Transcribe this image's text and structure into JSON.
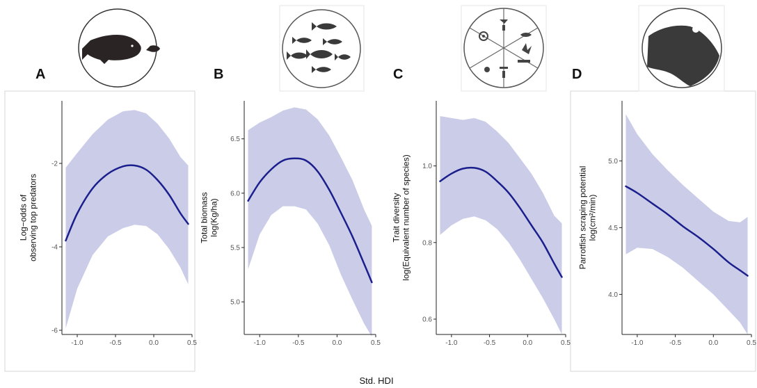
{
  "figure": {
    "shared_xlabel": "Std. HDI"
  },
  "colors": {
    "band": "#cbcce8",
    "line": "#1a1f8c",
    "axis": "#222222",
    "icon_dark": "#2b2b2b"
  },
  "chart_data": [
    {
      "type": "line",
      "panel": "A",
      "icon": "grouper-and-small-fish-icon",
      "xlabel": "",
      "ylabel": [
        "Log−odds of",
        "observing top predators"
      ],
      "xlim": [
        -1.2,
        0.5
      ],
      "ylim": [
        -6.1,
        -0.5
      ],
      "xticks": [
        "-1.0",
        "-0.5",
        "0.0",
        "0.5"
      ],
      "xtick_values": [
        -1.0,
        -0.5,
        0.0,
        0.5
      ],
      "yticks": [
        "-2",
        "-4",
        "-6"
      ],
      "ytick_values": [
        -2,
        -4,
        -6
      ],
      "grid": false,
      "series": [
        {
          "x": [
            -1.15,
            -1.0,
            -0.8,
            -0.6,
            -0.4,
            -0.25,
            -0.1,
            0.05,
            0.2,
            0.35,
            0.45
          ],
          "y": [
            -3.85,
            -3.2,
            -2.6,
            -2.25,
            -2.07,
            -2.05,
            -2.15,
            -2.4,
            -2.75,
            -3.2,
            -3.45
          ],
          "lower": [
            -5.95,
            -5.0,
            -4.2,
            -3.75,
            -3.55,
            -3.47,
            -3.5,
            -3.7,
            -4.05,
            -4.5,
            -4.9
          ],
          "upper": [
            -2.1,
            -1.75,
            -1.3,
            -0.95,
            -0.75,
            -0.72,
            -0.8,
            -1.05,
            -1.4,
            -1.85,
            -2.05
          ]
        }
      ]
    },
    {
      "type": "line",
      "panel": "B",
      "icon": "school-of-fish-icon",
      "xlabel": "",
      "ylabel": [
        "Total biomass",
        "log(Kg/ha)"
      ],
      "xlim": [
        -1.2,
        0.5
      ],
      "ylim": [
        4.7,
        6.85
      ],
      "xticks": [
        "-1.0",
        "-0.5",
        "0.0",
        "0.5"
      ],
      "xtick_values": [
        -1.0,
        -0.5,
        0.0,
        0.5
      ],
      "yticks": [
        "6.5",
        "6.0",
        "5.5",
        "5.0"
      ],
      "ytick_values": [
        6.5,
        6.0,
        5.5,
        5.0
      ],
      "grid": false,
      "series": [
        {
          "x": [
            -1.15,
            -1.0,
            -0.85,
            -0.7,
            -0.55,
            -0.4,
            -0.25,
            -0.1,
            0.05,
            0.2,
            0.35,
            0.45
          ],
          "y": [
            5.93,
            6.1,
            6.22,
            6.3,
            6.32,
            6.3,
            6.2,
            6.03,
            5.82,
            5.6,
            5.35,
            5.18
          ],
          "lower": [
            5.3,
            5.62,
            5.8,
            5.88,
            5.88,
            5.85,
            5.72,
            5.52,
            5.25,
            5.02,
            4.8,
            4.68
          ],
          "upper": [
            6.58,
            6.65,
            6.7,
            6.76,
            6.79,
            6.77,
            6.68,
            6.53,
            6.33,
            6.12,
            5.85,
            5.7
          ]
        }
      ]
    },
    {
      "type": "line",
      "panel": "C",
      "icon": "functional-traits-wheel-icon",
      "xlabel": "",
      "ylabel": [
        "Trait diversity",
        "log(Equivalent number of species)"
      ],
      "xlim": [
        -1.2,
        0.5
      ],
      "ylim": [
        0.56,
        1.17
      ],
      "xticks": [
        "-1.0",
        "-0.5",
        "0.0",
        "0.5"
      ],
      "xtick_values": [
        -1.0,
        -0.5,
        0.0,
        0.5
      ],
      "yticks": [
        "1.0",
        "0.8",
        "0.6"
      ],
      "ytick_values": [
        1.0,
        0.8,
        0.6
      ],
      "grid": false,
      "series": [
        {
          "x": [
            -1.15,
            -1.0,
            -0.85,
            -0.7,
            -0.55,
            -0.4,
            -0.25,
            -0.1,
            0.05,
            0.2,
            0.35,
            0.45
          ],
          "y": [
            0.96,
            0.98,
            0.993,
            0.995,
            0.985,
            0.96,
            0.93,
            0.89,
            0.845,
            0.8,
            0.745,
            0.71
          ],
          "lower": [
            0.82,
            0.845,
            0.862,
            0.868,
            0.858,
            0.835,
            0.8,
            0.755,
            0.705,
            0.655,
            0.6,
            0.56
          ],
          "upper": [
            1.13,
            1.125,
            1.12,
            1.125,
            1.115,
            1.09,
            1.06,
            1.02,
            0.98,
            0.93,
            0.87,
            0.85
          ]
        }
      ]
    },
    {
      "type": "line",
      "panel": "D",
      "icon": "parrotfish-head-icon",
      "xlabel": "",
      "ylabel": [
        "Parrotfish scraping potential",
        "log(cm²/min)"
      ],
      "xlim": [
        -1.2,
        0.5
      ],
      "ylim": [
        3.7,
        5.45
      ],
      "xticks": [
        "-1.0",
        "-0.5",
        "0.0",
        "0.5"
      ],
      "xtick_values": [
        -1.0,
        -0.5,
        0.0,
        0.5
      ],
      "yticks": [
        "5.0",
        "4.5",
        "4.0"
      ],
      "ytick_values": [
        5.0,
        4.5,
        4.0
      ],
      "grid": false,
      "series": [
        {
          "x": [
            -1.15,
            -1.0,
            -0.8,
            -0.6,
            -0.4,
            -0.2,
            0.0,
            0.2,
            0.35,
            0.45
          ],
          "y": [
            4.81,
            4.76,
            4.68,
            4.6,
            4.51,
            4.43,
            4.34,
            4.24,
            4.18,
            4.14
          ],
          "lower": [
            4.3,
            4.35,
            4.34,
            4.28,
            4.2,
            4.1,
            4.0,
            3.88,
            3.79,
            3.7
          ],
          "upper": [
            5.35,
            5.2,
            5.05,
            4.93,
            4.82,
            4.72,
            4.62,
            4.55,
            4.54,
            4.58
          ]
        }
      ]
    }
  ]
}
